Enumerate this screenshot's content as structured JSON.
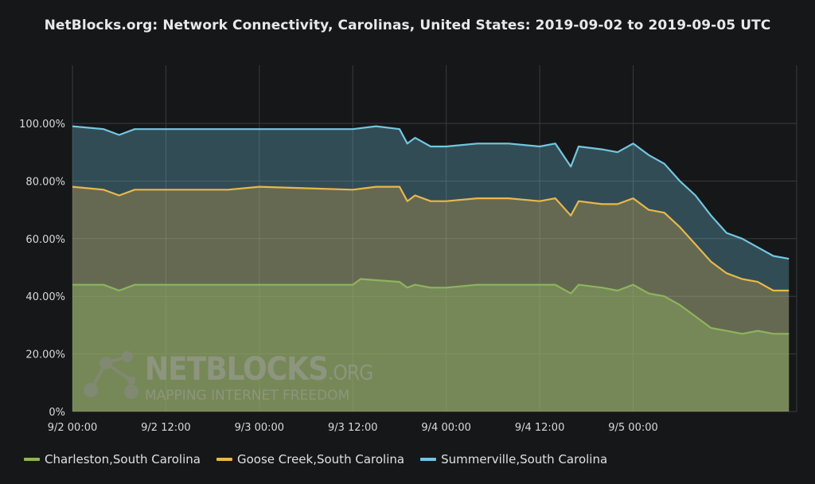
{
  "chart_data": {
    "type": "area",
    "stacked": false,
    "title": "NetBlocks.org: Network Connectivity, Carolinas, United States: 2019-09-02 to 2019-09-05 UTC",
    "xlabel": "",
    "ylabel": "",
    "x_range": [
      "2019-09-02 00:00",
      "2019-09-05 21:00"
    ],
    "ylim": [
      0,
      100
    ],
    "y_ticks": [
      0,
      20,
      40,
      60,
      80,
      100
    ],
    "y_tick_labels": [
      "0%",
      "20.00%",
      "40.00%",
      "60.00%",
      "80.00%",
      "100.00%"
    ],
    "x_ticks": [
      "2019-09-02 00:00",
      "2019-09-02 12:00",
      "2019-09-03 00:00",
      "2019-09-03 12:00",
      "2019-09-04 00:00",
      "2019-09-04 12:00",
      "2019-09-05 00:00"
    ],
    "x_tick_labels": [
      "9/2 00:00",
      "9/2 12:00",
      "9/3 00:00",
      "9/3 12:00",
      "9/4 00:00",
      "9/4 12:00",
      "9/5 00:00"
    ],
    "grid": true,
    "legend_position": "bottom-left",
    "series": [
      {
        "name": "Summerville,South Carolina",
        "color": "#73c6e0",
        "points": [
          [
            "2019-09-02 00:00",
            99
          ],
          [
            "2019-09-02 04:00",
            98
          ],
          [
            "2019-09-02 06:00",
            96
          ],
          [
            "2019-09-02 08:00",
            98
          ],
          [
            "2019-09-02 12:00",
            98
          ],
          [
            "2019-09-02 20:00",
            98
          ],
          [
            "2019-09-03 00:00",
            98
          ],
          [
            "2019-09-03 12:00",
            98
          ],
          [
            "2019-09-03 15:00",
            99
          ],
          [
            "2019-09-03 18:00",
            98
          ],
          [
            "2019-09-03 19:00",
            93
          ],
          [
            "2019-09-03 20:00",
            95
          ],
          [
            "2019-09-03 22:00",
            92
          ],
          [
            "2019-09-04 00:00",
            92
          ],
          [
            "2019-09-04 04:00",
            93
          ],
          [
            "2019-09-04 08:00",
            93
          ],
          [
            "2019-09-04 12:00",
            92
          ],
          [
            "2019-09-04 14:00",
            93
          ],
          [
            "2019-09-04 16:00",
            85
          ],
          [
            "2019-09-04 17:00",
            92
          ],
          [
            "2019-09-04 20:00",
            91
          ],
          [
            "2019-09-04 22:00",
            90
          ],
          [
            "2019-09-05 00:00",
            93
          ],
          [
            "2019-09-05 02:00",
            89
          ],
          [
            "2019-09-05 04:00",
            86
          ],
          [
            "2019-09-05 06:00",
            80
          ],
          [
            "2019-09-05 08:00",
            75
          ],
          [
            "2019-09-05 10:00",
            68
          ],
          [
            "2019-09-05 12:00",
            62
          ],
          [
            "2019-09-05 14:00",
            60
          ],
          [
            "2019-09-05 16:00",
            57
          ],
          [
            "2019-09-05 18:00",
            54
          ],
          [
            "2019-09-05 20:00",
            53
          ]
        ]
      },
      {
        "name": "Goose Creek,South Carolina",
        "color": "#e8b84a",
        "points": [
          [
            "2019-09-02 00:00",
            78
          ],
          [
            "2019-09-02 04:00",
            77
          ],
          [
            "2019-09-02 06:00",
            75
          ],
          [
            "2019-09-02 08:00",
            77
          ],
          [
            "2019-09-02 12:00",
            77
          ],
          [
            "2019-09-02 20:00",
            77
          ],
          [
            "2019-09-03 00:00",
            78
          ],
          [
            "2019-09-03 12:00",
            77
          ],
          [
            "2019-09-03 15:00",
            78
          ],
          [
            "2019-09-03 18:00",
            78
          ],
          [
            "2019-09-03 19:00",
            73
          ],
          [
            "2019-09-03 20:00",
            75
          ],
          [
            "2019-09-03 22:00",
            73
          ],
          [
            "2019-09-04 00:00",
            73
          ],
          [
            "2019-09-04 04:00",
            74
          ],
          [
            "2019-09-04 08:00",
            74
          ],
          [
            "2019-09-04 12:00",
            73
          ],
          [
            "2019-09-04 14:00",
            74
          ],
          [
            "2019-09-04 16:00",
            68
          ],
          [
            "2019-09-04 17:00",
            73
          ],
          [
            "2019-09-04 20:00",
            72
          ],
          [
            "2019-09-04 22:00",
            72
          ],
          [
            "2019-09-05 00:00",
            74
          ],
          [
            "2019-09-05 02:00",
            70
          ],
          [
            "2019-09-05 04:00",
            69
          ],
          [
            "2019-09-05 06:00",
            64
          ],
          [
            "2019-09-05 08:00",
            58
          ],
          [
            "2019-09-05 10:00",
            52
          ],
          [
            "2019-09-05 12:00",
            48
          ],
          [
            "2019-09-05 14:00",
            46
          ],
          [
            "2019-09-05 16:00",
            45
          ],
          [
            "2019-09-05 18:00",
            42
          ],
          [
            "2019-09-05 20:00",
            42
          ]
        ]
      },
      {
        "name": "Charleston,South Carolina",
        "color": "#8fb35f",
        "points": [
          [
            "2019-09-02 00:00",
            44
          ],
          [
            "2019-09-02 04:00",
            44
          ],
          [
            "2019-09-02 06:00",
            42
          ],
          [
            "2019-09-02 08:00",
            44
          ],
          [
            "2019-09-02 12:00",
            44
          ],
          [
            "2019-09-02 20:00",
            44
          ],
          [
            "2019-09-03 00:00",
            44
          ],
          [
            "2019-09-03 12:00",
            44
          ],
          [
            "2019-09-03 13:00",
            46
          ],
          [
            "2019-09-03 18:00",
            45
          ],
          [
            "2019-09-03 19:00",
            43
          ],
          [
            "2019-09-03 20:00",
            44
          ],
          [
            "2019-09-03 22:00",
            43
          ],
          [
            "2019-09-04 00:00",
            43
          ],
          [
            "2019-09-04 04:00",
            44
          ],
          [
            "2019-09-04 08:00",
            44
          ],
          [
            "2019-09-04 12:00",
            44
          ],
          [
            "2019-09-04 14:00",
            44
          ],
          [
            "2019-09-04 16:00",
            41
          ],
          [
            "2019-09-04 17:00",
            44
          ],
          [
            "2019-09-04 20:00",
            43
          ],
          [
            "2019-09-04 22:00",
            42
          ],
          [
            "2019-09-05 00:00",
            44
          ],
          [
            "2019-09-05 02:00",
            41
          ],
          [
            "2019-09-05 04:00",
            40
          ],
          [
            "2019-09-05 06:00",
            37
          ],
          [
            "2019-09-05 08:00",
            33
          ],
          [
            "2019-09-05 10:00",
            29
          ],
          [
            "2019-09-05 12:00",
            28
          ],
          [
            "2019-09-05 14:00",
            27
          ],
          [
            "2019-09-05 16:00",
            28
          ],
          [
            "2019-09-05 18:00",
            27
          ],
          [
            "2019-09-05 20:00",
            27
          ]
        ]
      }
    ],
    "legend_order": [
      "Charleston,South Carolina",
      "Goose Creek,South Carolina",
      "Summerville,South Carolina"
    ]
  },
  "watermark": {
    "brand": "NETBLOCKS",
    "brand_suffix": ".ORG",
    "tagline": "MAPPING INTERNET FREEDOM",
    "logo_icon": "network-nodes-icon"
  }
}
